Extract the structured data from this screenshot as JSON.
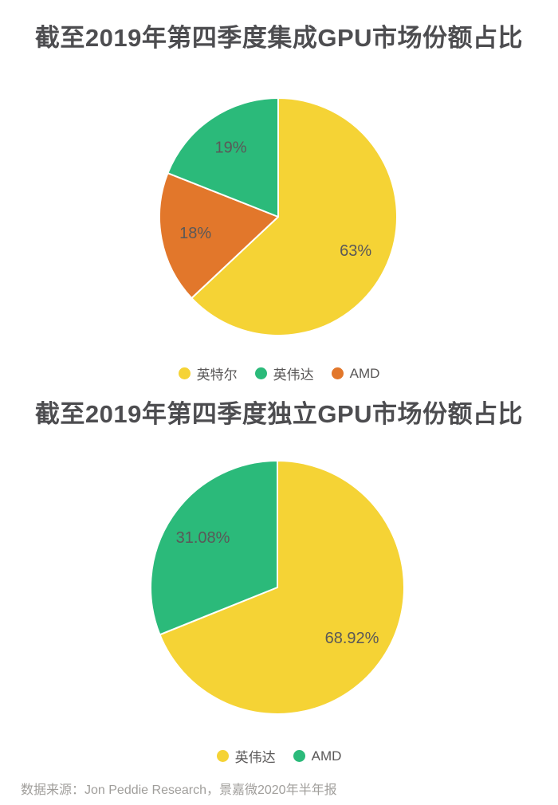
{
  "colors": {
    "yellow": "#F5D335",
    "green": "#2BBA7A",
    "orange": "#E2772B",
    "title_text": "#4D4D50",
    "slice_label_text": "#5A5858",
    "legend_text": "#595757",
    "footer_text": "#A09E9B"
  },
  "footer": {
    "source_text": "数据来源：Jon Peddie Research，景嘉微2020年半年报"
  },
  "chart_data": [
    {
      "type": "pie",
      "title": "截至2019年第四季度集成GPU市场份额占比",
      "start_angle": "12-oclock",
      "direction": "clockwise",
      "legend_position": "bottom",
      "slices": [
        {
          "name": "英特尔",
          "value": 63,
          "label": "63%",
          "color": "#F5D335"
        },
        {
          "name": "AMD",
          "value": 18,
          "label": "18%",
          "color": "#E2772B"
        },
        {
          "name": "英伟达",
          "value": 19,
          "label": "19%",
          "color": "#2BBA7A"
        }
      ],
      "legend": [
        {
          "name": "英特尔",
          "color": "#F5D335"
        },
        {
          "name": "英伟达",
          "color": "#2BBA7A"
        },
        {
          "name": "AMD",
          "color": "#E2772B"
        }
      ]
    },
    {
      "type": "pie",
      "title": "截至2019年第四季度独立GPU市场份额占比",
      "start_angle": "12-oclock",
      "direction": "clockwise",
      "legend_position": "bottom",
      "slices": [
        {
          "name": "英伟达",
          "value": 68.92,
          "label": "68.92%",
          "color": "#F5D335"
        },
        {
          "name": "AMD",
          "value": 31.08,
          "label": "31.08%",
          "color": "#2BBA7A"
        }
      ],
      "legend": [
        {
          "name": "英伟达",
          "color": "#F5D335"
        },
        {
          "name": "AMD",
          "color": "#2BBA7A"
        }
      ]
    }
  ]
}
